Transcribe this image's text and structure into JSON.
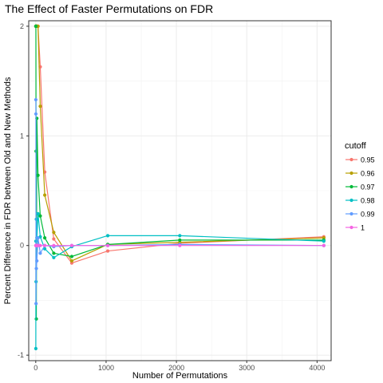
{
  "chart_data": {
    "type": "line",
    "title": "The Effect of Faster Permutations on FDR",
    "xlabel": "Number of Permutations",
    "ylabel": "Percent Difference in FDR between Old and New Methods",
    "xlim": [
      -100,
      4200
    ],
    "ylim": [
      -1.05,
      2.05
    ],
    "xticks": [
      0,
      1000,
      2000,
      3000,
      4000
    ],
    "yticks": [
      -1,
      0,
      1,
      2
    ],
    "grid": true,
    "legend": {
      "title": "cutoff",
      "position": "right"
    },
    "x": [
      1,
      2,
      4,
      8,
      16,
      32,
      64,
      128,
      256,
      512,
      1024,
      2048,
      4096
    ],
    "series": [
      {
        "name": "0.95",
        "color": "#F8766D",
        "values": [
          2,
          2,
          2,
          2,
          2,
          2,
          1.63,
          0.67,
          0.06,
          -0.16,
          -0.05,
          0.02,
          0.08
        ]
      },
      {
        "name": "0.96",
        "color": "#B79F00",
        "values": [
          2,
          2,
          2,
          2,
          2,
          2,
          1.27,
          0.46,
          0.12,
          -0.14,
          0.01,
          0.03,
          0.07
        ]
      },
      {
        "name": "0.97",
        "color": "#00BA38",
        "values": [
          2,
          2,
          0.86,
          -0.67,
          1.16,
          0.64,
          0.27,
          0.07,
          -0.07,
          -0.1,
          0.01,
          0.05,
          0.05
        ]
      },
      {
        "name": "0.98",
        "color": "#00BFC4",
        "values": [
          -0.94,
          0.04,
          -0.33,
          0.24,
          0.07,
          0.29,
          0.08,
          -0.03,
          -0.11,
          -0.01,
          0.09,
          0.09,
          0.04
        ]
      },
      {
        "name": "0.99",
        "color": "#619CFF",
        "values": [
          1.33,
          1.2,
          -0.53,
          -0.21,
          -0.14,
          0.07,
          -0.07,
          0.0,
          -0.01,
          0.0,
          0.0,
          0.01,
          0.0
        ]
      },
      {
        "name": "1",
        "color": "#F564E3",
        "values": [
          0,
          0,
          0,
          0,
          0,
          0,
          0,
          0,
          0,
          0,
          0,
          0,
          0
        ]
      }
    ]
  }
}
